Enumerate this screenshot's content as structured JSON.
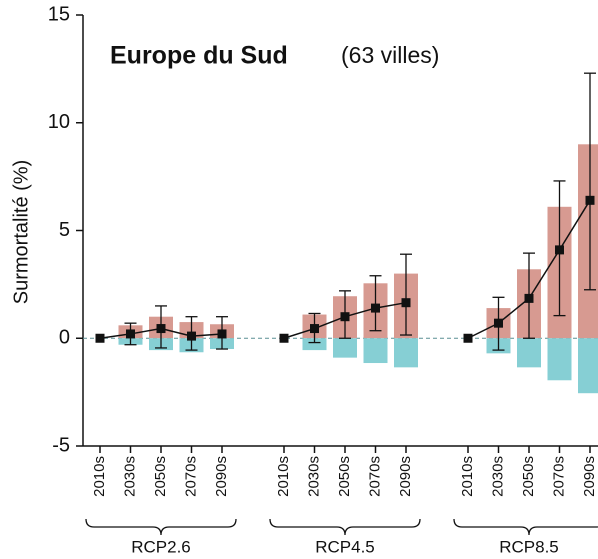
{
  "chart_data": {
    "type": "bar-line",
    "title": "Europe du Sud",
    "subtitle": "(63 villes)",
    "y_label": "Surmortalité (%)",
    "ylim": [
      -5,
      15
    ],
    "yticks": [
      -5,
      0,
      5,
      10,
      15
    ],
    "increase_color": "#d79a91",
    "decrease_color": "#86cfd4",
    "line_color": "#111111",
    "groups": [
      {
        "name": "RCP2.6",
        "categories": [
          "2010s",
          "2030s",
          "2050s",
          "2070s",
          "2090s"
        ],
        "increase": [
          0,
          0.6,
          1.0,
          0.75,
          0.65
        ],
        "decrease": [
          0,
          -0.3,
          -0.55,
          -0.65,
          -0.5
        ],
        "net": [
          0,
          0.2,
          0.45,
          0.1,
          0.2
        ],
        "err_low": [
          null,
          -0.3,
          -0.45,
          -0.55,
          -0.5
        ],
        "err_high": [
          null,
          0.7,
          1.5,
          1.0,
          1.0
        ]
      },
      {
        "name": "RCP4.5",
        "categories": [
          "2010s",
          "2030s",
          "2050s",
          "2070s",
          "2090s"
        ],
        "increase": [
          0,
          1.1,
          1.95,
          2.55,
          3.0
        ],
        "decrease": [
          0,
          -0.55,
          -0.9,
          -1.15,
          -1.35
        ],
        "net": [
          0,
          0.45,
          1.0,
          1.4,
          1.65
        ],
        "err_low": [
          null,
          -0.2,
          0,
          0.35,
          0.15
        ],
        "err_high": [
          null,
          1.15,
          2.2,
          2.9,
          3.9
        ]
      },
      {
        "name": "RCP8.5",
        "categories": [
          "2010s",
          "2030s",
          "2050s",
          "2070s",
          "2090s"
        ],
        "increase": [
          0,
          1.4,
          3.2,
          6.1,
          9.0
        ],
        "decrease": [
          0,
          -0.7,
          -1.35,
          -1.95,
          -2.55
        ],
        "net": [
          0,
          0.7,
          1.85,
          4.1,
          6.4
        ],
        "err_low": [
          null,
          -0.55,
          0,
          1.05,
          2.25
        ],
        "err_high": [
          null,
          1.9,
          3.95,
          7.3,
          12.3
        ]
      }
    ]
  }
}
